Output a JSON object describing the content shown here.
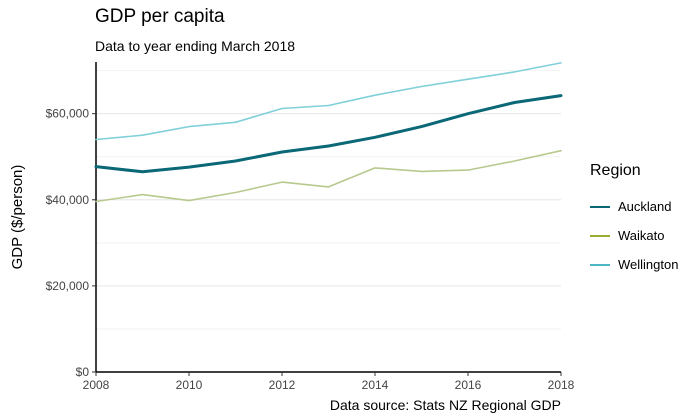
{
  "chart_data": {
    "type": "line",
    "title": "GDP per capita",
    "subtitle": "Data to year ending March 2018",
    "caption": "Data source: Stats NZ Regional GDP",
    "xlabel": "",
    "ylabel": "GDP ($/person)",
    "xlim": [
      2008,
      2018
    ],
    "ylim": [
      0,
      72000
    ],
    "x_ticks": [
      2008,
      2010,
      2012,
      2014,
      2016,
      2018
    ],
    "x_tick_labels": [
      "2008",
      "2010",
      "2012",
      "2014",
      "2016",
      "2018"
    ],
    "y_ticks": [
      0,
      20000,
      40000,
      60000
    ],
    "y_tick_labels": [
      "$0",
      "$20,000",
      "$40,000",
      "$60,000"
    ],
    "grid": "horizontal",
    "legend_title": "Region",
    "legend_position": "right",
    "x": [
      2008,
      2009,
      2010,
      2011,
      2012,
      2013,
      2014,
      2015,
      2016,
      2017,
      2018
    ],
    "series": [
      {
        "name": "Auckland",
        "color": "#0b6877",
        "emphasis": true,
        "values": [
          47700,
          46500,
          47600,
          49000,
          51100,
          52500,
          54500,
          57000,
          60000,
          62600,
          64200
        ]
      },
      {
        "name": "Waikato",
        "color": "#b8c98e",
        "legend_color": "#9aad2e",
        "values": [
          39600,
          41200,
          39800,
          41700,
          44100,
          43000,
          47400,
          46600,
          46900,
          49000,
          51400
        ]
      },
      {
        "name": "Wellington",
        "color": "#7fd0d9",
        "legend_color": "#4cb6c6",
        "values": [
          54000,
          55000,
          57000,
          58000,
          61200,
          61900,
          64300,
          66300,
          68000,
          69700,
          71800
        ]
      }
    ]
  }
}
